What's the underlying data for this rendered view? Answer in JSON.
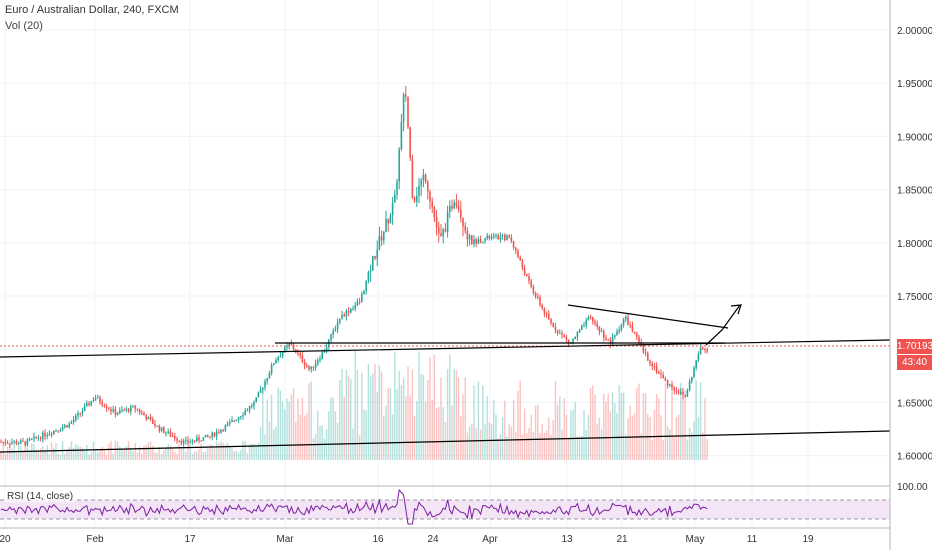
{
  "legend": {
    "title": "Euro / Australian Dollar, 240, FXCM",
    "volume": "Vol (20)",
    "rsi": "RSI (14, close)"
  },
  "price_axis": {
    "ticks": [
      "2.00000",
      "1.95000",
      "1.90000",
      "1.85000",
      "1.80000",
      "1.75000",
      "1.70000",
      "1.65000",
      "1.60000"
    ],
    "last_price": "1.70193",
    "countdown": "43:40"
  },
  "rsi_axis": {
    "ticks": [
      "100.00"
    ]
  },
  "time_axis": {
    "ticks": [
      "20",
      "Feb",
      "17",
      "Mar",
      "16",
      "24",
      "Apr",
      "13",
      "21",
      "May",
      "11",
      "19"
    ]
  },
  "colors": {
    "up": "#26a69a",
    "down": "#ef5350",
    "rsi_line": "#7b1fa2",
    "rsi_band": "#f3e5f5",
    "drawing": "#000000"
  },
  "chart_data": {
    "type": "candlestick",
    "symbol": "EUR/AUD",
    "timeframe": "240",
    "ylim": [
      1.58,
      2.02
    ],
    "last_price": 1.70193,
    "price_path": [
      [
        0,
        1.613
      ],
      [
        25,
        1.612
      ],
      [
        45,
        1.62
      ],
      [
        70,
        1.63
      ],
      [
        95,
        1.655
      ],
      [
        115,
        1.64
      ],
      [
        135,
        1.645
      ],
      [
        160,
        1.625
      ],
      [
        185,
        1.612
      ],
      [
        210,
        1.618
      ],
      [
        230,
        1.63
      ],
      [
        255,
        1.65
      ],
      [
        275,
        1.69
      ],
      [
        290,
        1.705
      ],
      [
        310,
        1.68
      ],
      [
        325,
        1.7
      ],
      [
        340,
        1.73
      ],
      [
        360,
        1.745
      ],
      [
        375,
        1.79
      ],
      [
        395,
        1.84
      ],
      [
        405,
        1.95
      ],
      [
        413,
        1.84
      ],
      [
        425,
        1.865
      ],
      [
        440,
        1.8
      ],
      [
        455,
        1.845
      ],
      [
        470,
        1.8
      ],
      [
        490,
        1.805
      ],
      [
        510,
        1.805
      ],
      [
        530,
        1.76
      ],
      [
        550,
        1.725
      ],
      [
        570,
        1.705
      ],
      [
        590,
        1.73
      ],
      [
        610,
        1.705
      ],
      [
        625,
        1.73
      ],
      [
        645,
        1.695
      ],
      [
        665,
        1.67
      ],
      [
        685,
        1.655
      ],
      [
        700,
        1.7
      ],
      [
        710,
        1.7
      ]
    ]
  }
}
